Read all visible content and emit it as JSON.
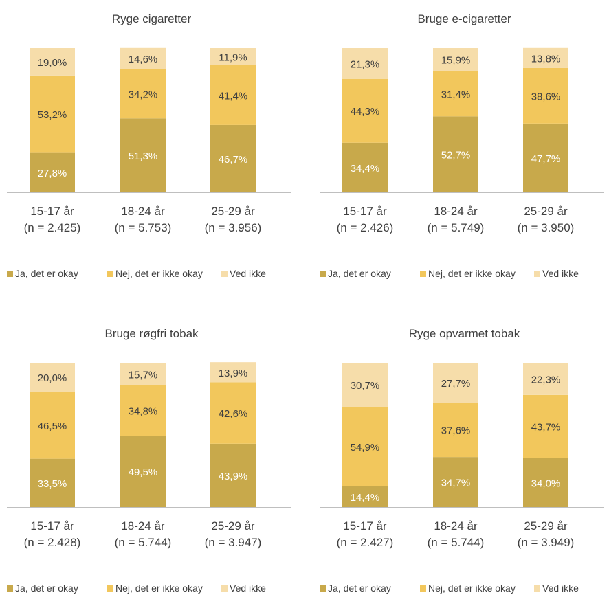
{
  "colors": {
    "ja": "#c8a94b",
    "nej": "#f2c75c",
    "ved_ikke": "#f6ddaa",
    "axis": "#bfbfbf",
    "text": "#404040"
  },
  "legend": [
    "Ja, det er okay",
    "Nej, det er ikke okay",
    "Ved ikke"
  ],
  "chart_data": [
    {
      "type": "bar",
      "stacked": true,
      "title": "Ryge cigaretter",
      "categories": [
        "15-17 år",
        "18-24 år",
        "25-29 år"
      ],
      "category_n": [
        "(n = 2.425)",
        "(n = 5.753)",
        "(n = 3.956)"
      ],
      "series": [
        {
          "name": "Ja, det er okay",
          "values": [
            27.8,
            51.3,
            46.7
          ],
          "labels": [
            "27,8%",
            "51,3%",
            "46,7%"
          ]
        },
        {
          "name": "Nej, det er ikke okay",
          "values": [
            53.2,
            34.2,
            41.4
          ],
          "labels": [
            "53,2%",
            "34,2%",
            "41,4%"
          ]
        },
        {
          "name": "Ved ikke",
          "values": [
            19.0,
            14.6,
            11.9
          ],
          "labels": [
            "19,0%",
            "14,6%",
            "11,9%"
          ]
        }
      ],
      "ylim": [
        0,
        100
      ],
      "legend_position": "bottom"
    },
    {
      "type": "bar",
      "stacked": true,
      "title": "Bruge e-cigaretter",
      "categories": [
        "15-17 år",
        "18-24 år",
        "25-29 år"
      ],
      "category_n": [
        "(n = 2.426)",
        "(n = 5.749)",
        "(n = 3.950)"
      ],
      "series": [
        {
          "name": "Ja, det er okay",
          "values": [
            34.4,
            52.7,
            47.7
          ],
          "labels": [
            "34,4%",
            "52,7%",
            "47,7%"
          ]
        },
        {
          "name": "Nej, det er ikke okay",
          "values": [
            44.3,
            31.4,
            38.6
          ],
          "labels": [
            "44,3%",
            "31,4%",
            "38,6%"
          ]
        },
        {
          "name": "Ved ikke",
          "values": [
            21.3,
            15.9,
            13.8
          ],
          "labels": [
            "21,3%",
            "15,9%",
            "13,8%"
          ]
        }
      ],
      "ylim": [
        0,
        100
      ],
      "legend_position": "bottom"
    },
    {
      "type": "bar",
      "stacked": true,
      "title": "Bruge røgfri tobak",
      "categories": [
        "15-17 år",
        "18-24 år",
        "25-29 år"
      ],
      "category_n": [
        "(n = 2.428)",
        "(n = 5.744)",
        "(n = 3.947)"
      ],
      "series": [
        {
          "name": "Ja, det er okay",
          "values": [
            33.5,
            49.5,
            43.9
          ],
          "labels": [
            "33,5%",
            "49,5%",
            "43,9%"
          ]
        },
        {
          "name": "Nej, det er ikke okay",
          "values": [
            46.5,
            34.8,
            42.6
          ],
          "labels": [
            "46,5%",
            "34,8%",
            "42,6%"
          ]
        },
        {
          "name": "Ved ikke",
          "values": [
            20.0,
            15.7,
            13.9
          ],
          "labels": [
            "20,0%",
            "15,7%",
            "13,9%"
          ]
        }
      ],
      "ylim": [
        0,
        100
      ],
      "legend_position": "bottom"
    },
    {
      "type": "bar",
      "stacked": true,
      "title": "Ryge opvarmet tobak",
      "categories": [
        "15-17 år",
        "18-24 år",
        "25-29 år"
      ],
      "category_n": [
        "(n = 2.427)",
        "(n = 5.744)",
        "(n = 3.949)"
      ],
      "series": [
        {
          "name": "Ja, det er okay",
          "values": [
            14.4,
            34.7,
            34.0
          ],
          "labels": [
            "14,4%",
            "34,7%",
            "34,0%"
          ]
        },
        {
          "name": "Nej, det er ikke okay",
          "values": [
            54.9,
            37.6,
            43.7
          ],
          "labels": [
            "54,9%",
            "37,6%",
            "43,7%"
          ]
        },
        {
          "name": "Ved ikke",
          "values": [
            30.7,
            27.7,
            22.3
          ],
          "labels": [
            "30,7%",
            "27,7%",
            "22,3%"
          ]
        }
      ],
      "ylim": [
        0,
        100
      ],
      "legend_position": "bottom"
    }
  ]
}
